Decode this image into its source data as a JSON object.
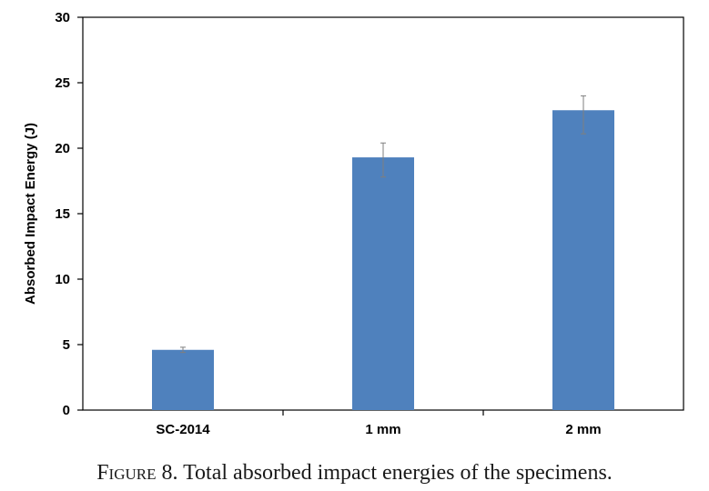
{
  "caption": {
    "label": "Figure 8.",
    "text": "Total absorbed impact energies of the specimens."
  },
  "chart_data": {
    "type": "bar",
    "title": "",
    "xlabel": "",
    "ylabel": "Absorbed Impact Energy (J)",
    "categories": [
      "SC-2014",
      "1 mm",
      "2 mm"
    ],
    "values": [
      4.6,
      19.3,
      22.9
    ],
    "error_high": [
      4.8,
      20.4,
      24.0
    ],
    "error_low": [
      4.4,
      17.8,
      21.1
    ],
    "ylim": [
      0,
      30
    ],
    "yticks": [
      0,
      5,
      10,
      15,
      20,
      25,
      30
    ],
    "grid": false,
    "legend": "none",
    "bar_color": "#4f81bd",
    "error_bar_color": "#7f7f7f"
  }
}
